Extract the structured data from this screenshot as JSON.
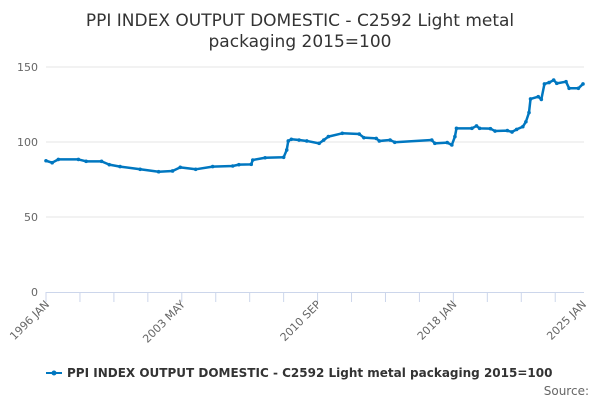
{
  "chart_data": {
    "type": "line",
    "title_lines": [
      "PPI INDEX OUTPUT DOMESTIC - C2592 Light metal",
      "packaging 2015=100"
    ],
    "xlabel": "",
    "ylabel": "",
    "ylim": [
      0,
      150
    ],
    "y_ticks": [
      "0",
      "50",
      "100",
      "150"
    ],
    "x_range": [
      "1996 JAN",
      "2025 JAN"
    ],
    "x_tick_labels": [
      "1996 JAN",
      "2003 MAY",
      "2010 SEP",
      "2018 JAN",
      "2025 JAN"
    ],
    "grid": true,
    "legend_position": "bottom",
    "color": "#0077c0",
    "series": [
      {
        "name": "PPI INDEX OUTPUT DOMESTIC - C2592 Light metal packaging 2015=100",
        "points": [
          [
            "1996 JAN",
            87.5
          ],
          [
            "1996 MAY",
            86.2
          ],
          [
            "1996 SEP",
            88.4
          ],
          [
            "1997 OCT",
            88.4
          ],
          [
            "1998 MAR",
            87.1
          ],
          [
            "1999 JAN",
            87.1
          ],
          [
            "1999 JUN",
            84.9
          ],
          [
            "2000 JAN",
            83.6
          ],
          [
            "2001 FEB",
            81.8
          ],
          [
            "2002 FEB",
            80.2
          ],
          [
            "2002 NOV",
            80.7
          ],
          [
            "2003 APR",
            83.1
          ],
          [
            "2004 FEB",
            81.8
          ],
          [
            "2005 JAN",
            83.6
          ],
          [
            "2006 FEB",
            84.0
          ],
          [
            "2006 JUN",
            84.9
          ],
          [
            "2007 FEB",
            85.1
          ],
          [
            "2007 MAR",
            88.0
          ],
          [
            "2007 NOV",
            89.5
          ],
          [
            "2008 NOV",
            89.8
          ],
          [
            "2009 JAN",
            94.7
          ],
          [
            "2009 FEB",
            100.7
          ],
          [
            "2009 APR",
            101.8
          ],
          [
            "2009 SEP",
            101.3
          ],
          [
            "2010 FEB",
            100.7
          ],
          [
            "2010 OCT",
            99.1
          ],
          [
            "2011 JAN",
            101.3
          ],
          [
            "2011 APR",
            103.6
          ],
          [
            "2012 JAN",
            105.8
          ],
          [
            "2012 DEC",
            105.3
          ],
          [
            "2013 MAR",
            102.9
          ],
          [
            "2013 NOV",
            102.4
          ],
          [
            "2014 JAN",
            100.7
          ],
          [
            "2014 AUG",
            101.3
          ],
          [
            "2014 NOV",
            99.8
          ],
          [
            "2016 NOV",
            101.3
          ],
          [
            "2017 JAN",
            99.1
          ],
          [
            "2017 SEP",
            99.6
          ],
          [
            "2017 DEC",
            98.0
          ],
          [
            "2018 FEB",
            103.6
          ],
          [
            "2018 MAR",
            109.1
          ],
          [
            "2019 JAN",
            109.1
          ],
          [
            "2019 APR",
            110.7
          ],
          [
            "2019 JUN",
            109.1
          ],
          [
            "2020 JAN",
            108.9
          ],
          [
            "2020 APR",
            107.3
          ],
          [
            "2020 DEC",
            107.6
          ],
          [
            "2021 MAR",
            106.7
          ],
          [
            "2021 JUN",
            108.4
          ],
          [
            "2021 OCT",
            110.2
          ],
          [
            "2021 DEC",
            113.5
          ],
          [
            "2022 FEB",
            119.6
          ],
          [
            "2022 MAR",
            128.7
          ],
          [
            "2022 AUG",
            130.2
          ],
          [
            "2022 OCT",
            128.4
          ],
          [
            "2022 DEC",
            138.7
          ],
          [
            "2023 MAR",
            139.6
          ],
          [
            "2023 JUN",
            141.3
          ],
          [
            "2023 AUG",
            139.1
          ],
          [
            "2024 FEB",
            140.2
          ],
          [
            "2024 APR",
            135.8
          ],
          [
            "2024 OCT",
            135.8
          ],
          [
            "2025 JAN",
            138.7
          ]
        ]
      }
    ]
  },
  "credits": {
    "source_label": "Source:"
  }
}
